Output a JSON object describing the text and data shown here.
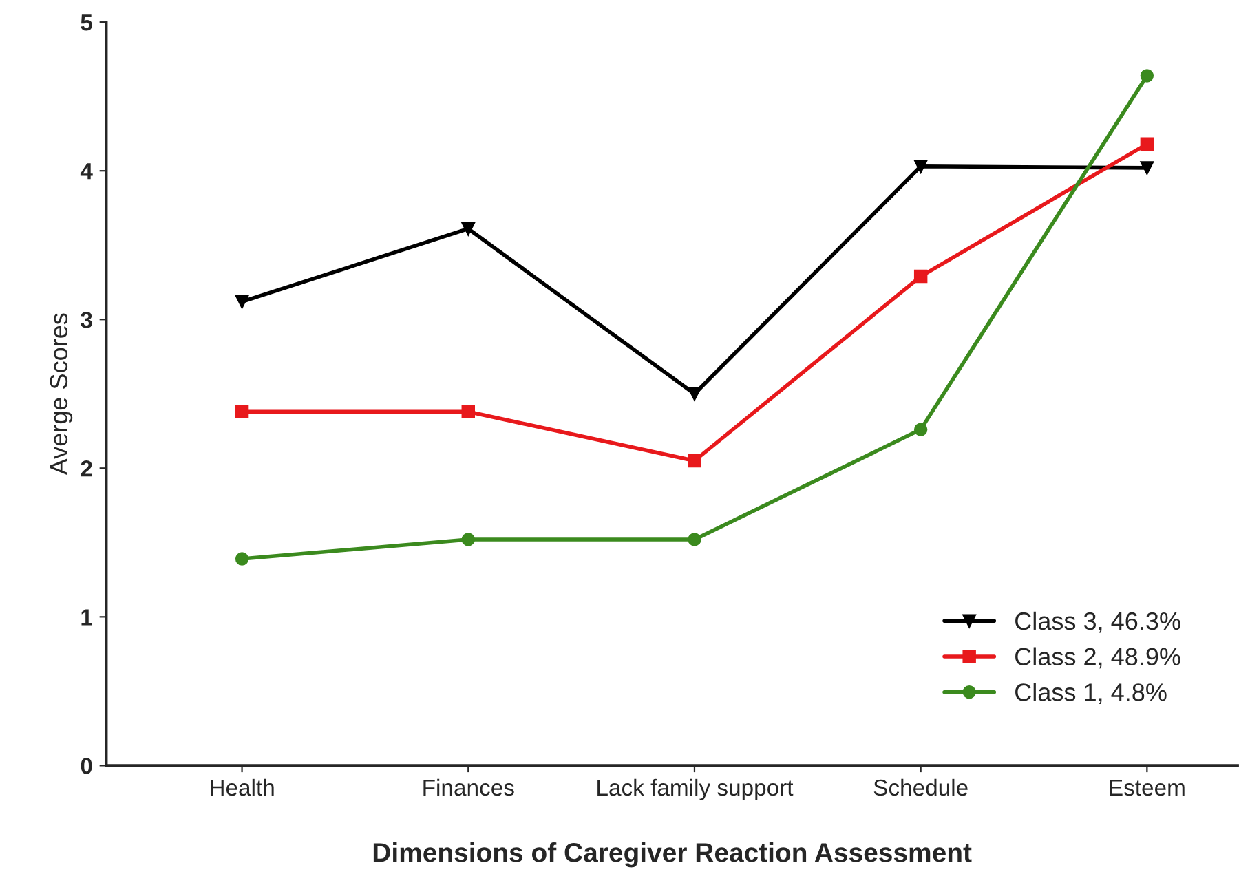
{
  "chart_data": {
    "type": "line",
    "xlabel": "Dimensions of Caregiver Reaction Assessment",
    "ylabel": "Averge Scores",
    "categories": [
      "Health",
      "Finances",
      "Lack family support",
      "Schedule",
      "Esteem"
    ],
    "series": [
      {
        "name": "Class 3, 46.3%",
        "color": "#000000",
        "marker": "triangle",
        "values": [
          3.12,
          3.61,
          2.5,
          4.03,
          4.02
        ]
      },
      {
        "name": "Class 2, 48.9%",
        "color": "#e8191c",
        "marker": "square",
        "values": [
          2.38,
          2.38,
          2.05,
          3.29,
          4.18
        ]
      },
      {
        "name": "Class 1, 4.8%",
        "color": "#3b8a1e",
        "marker": "circle",
        "values": [
          1.39,
          1.52,
          1.52,
          2.26,
          4.64
        ]
      }
    ],
    "ylim": [
      0,
      5
    ],
    "yticks": [
      0,
      1,
      2,
      3,
      4,
      5
    ],
    "grid": false,
    "legend": "bottom right",
    "line_style": "solid"
  }
}
